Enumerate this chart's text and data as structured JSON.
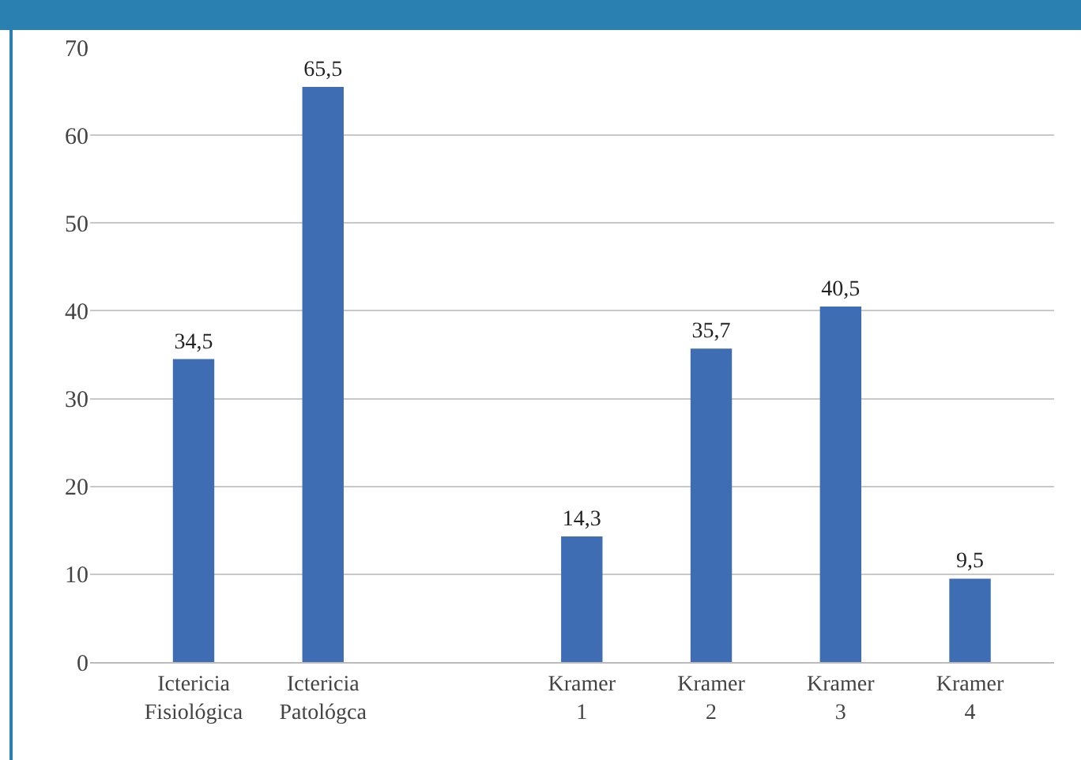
{
  "chart_data": {
    "type": "bar",
    "categories": [
      "Ictericia Fisiológica",
      "Ictericia Patológca",
      null,
      "Kramer 1",
      "Kramer 2",
      "Kramer 3",
      "Kramer 4"
    ],
    "values": [
      34.5,
      65.5,
      null,
      14.3,
      35.7,
      40.5,
      9.5
    ],
    "value_labels": [
      "34,5",
      "65,5",
      null,
      "14,3",
      "35,7",
      "40,5",
      "9,5"
    ],
    "color": "#3e6db3",
    "ylim": [
      0,
      70
    ],
    "yticks": [
      0,
      10,
      20,
      30,
      40,
      50,
      60,
      70
    ],
    "grid": "y",
    "legend": false
  }
}
